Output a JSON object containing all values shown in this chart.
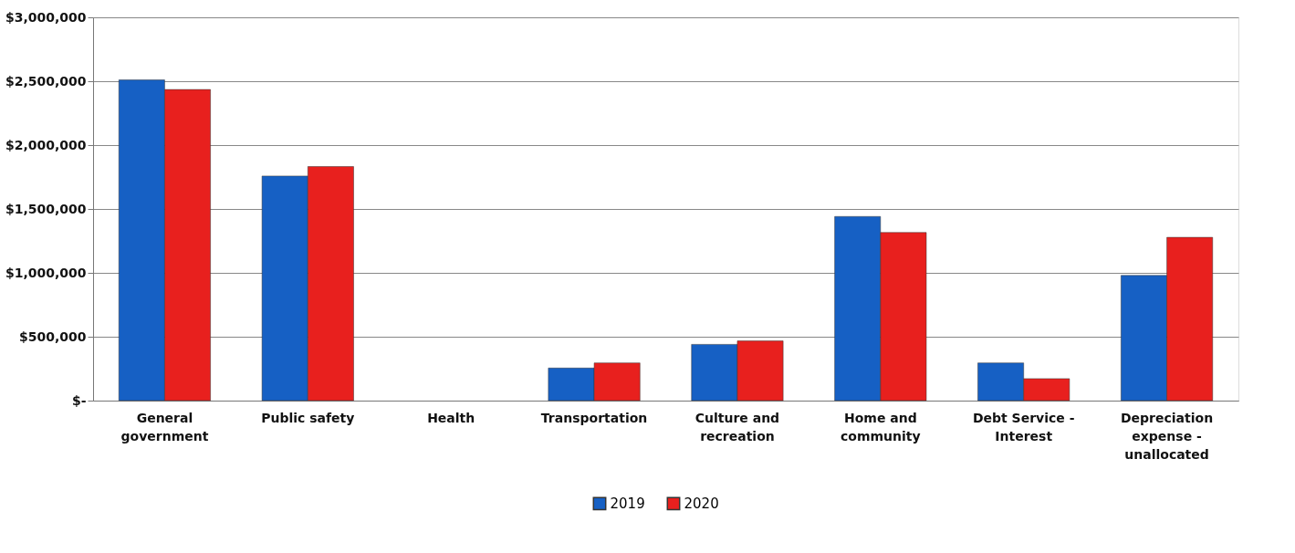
{
  "chart_data": {
    "type": "bar",
    "categories": [
      "General government",
      "Public safety",
      "Health",
      "Transportation",
      "Culture and recreation",
      "Home and community",
      "Debt Service - Interest",
      "Depreciation expense - unallocated"
    ],
    "series": [
      {
        "name": "2019",
        "color": "#1660c4",
        "values": [
          2510000,
          1758000,
          null,
          255000,
          440000,
          1441000,
          295000,
          980000
        ]
      },
      {
        "name": "2020",
        "color": "#e8201e",
        "values": [
          2435000,
          1832000,
          null,
          295000,
          467000,
          1316000,
          172000,
          1278000
        ]
      }
    ],
    "ylim": [
      0,
      3000000
    ],
    "yticks": [
      {
        "value": 0,
        "label": "$-"
      },
      {
        "value": 500000,
        "label": "$500,000"
      },
      {
        "value": 1000000,
        "label": "$1,000,000"
      },
      {
        "value": 1500000,
        "label": "$1,500,000"
      },
      {
        "value": 2000000,
        "label": "$2,000,000"
      },
      {
        "value": 2500000,
        "label": "$2,500,000"
      },
      {
        "value": 3000000,
        "label": "$3,000,000"
      }
    ],
    "grid": "y",
    "legend": "bottom"
  }
}
